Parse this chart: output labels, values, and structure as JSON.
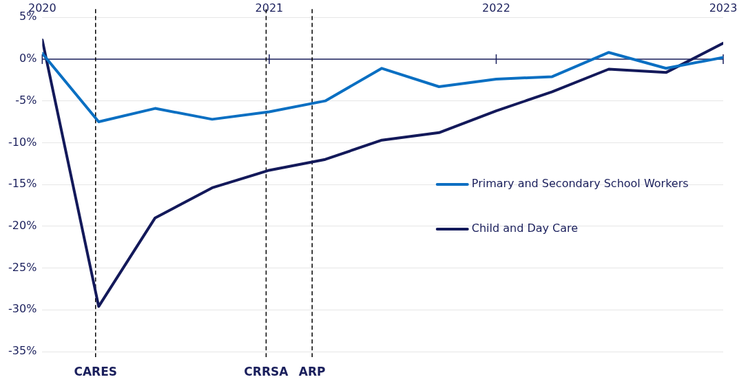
{
  "chart_data": {
    "type": "line",
    "x": [
      "2020-01",
      "2020-04",
      "2020-07",
      "2020-10",
      "2021-01",
      "2021-04",
      "2021-07",
      "2021-10",
      "2022-01",
      "2022-04",
      "2022-07",
      "2022-10",
      "2023-01"
    ],
    "series": [
      {
        "name": "Primary and Secondary School Workers",
        "color": "#0a6fc2",
        "values": [
          0.7,
          -7.5,
          -5.9,
          -7.2,
          -6.3,
          -5.0,
          -1.1,
          -3.3,
          -2.4,
          -2.1,
          0.8,
          -1.1,
          0.2
        ]
      },
      {
        "name": "Child and Day Care",
        "color": "#13195a",
        "values": [
          2.3,
          -29.6,
          -19.0,
          -15.4,
          -13.3,
          -12.0,
          -9.7,
          -8.8,
          -6.2,
          -3.9,
          -1.2,
          -1.6,
          1.9
        ]
      }
    ],
    "xlim": [
      "2020-01",
      "2023-01"
    ],
    "xticks": [
      {
        "value": "2020-01",
        "label": "2020"
      },
      {
        "value": "2021-01",
        "label": "2021"
      },
      {
        "value": "2022-01",
        "label": "2022"
      },
      {
        "value": "2023-01",
        "label": "2023"
      }
    ],
    "ylim": [
      -35,
      5
    ],
    "yticks": [
      {
        "value": 5,
        "label": "5%"
      },
      {
        "value": 0,
        "label": "0%"
      },
      {
        "value": -5,
        "label": "-5%"
      },
      {
        "value": -10,
        "label": "-10%"
      },
      {
        "value": -15,
        "label": "-15%"
      },
      {
        "value": -20,
        "label": "-20%"
      },
      {
        "value": -25,
        "label": "-25%"
      },
      {
        "value": -30,
        "label": "-30%"
      },
      {
        "value": -35,
        "label": "-35%"
      }
    ],
    "ref_lines": [
      {
        "axis": "x",
        "value": "2020-03-27",
        "label": "CARES",
        "color": "#000000",
        "line_style": "dashed"
      },
      {
        "axis": "x",
        "value": "2020-12-27",
        "label": "CRRSA",
        "color": "#000000",
        "line_style": "dashed"
      },
      {
        "axis": "x",
        "value": "2021-03-11",
        "label": "ARP",
        "color": "#000000",
        "line_style": "dashed"
      }
    ],
    "grid": "y",
    "legend": "right",
    "marker": "none",
    "line_style": "solid"
  }
}
